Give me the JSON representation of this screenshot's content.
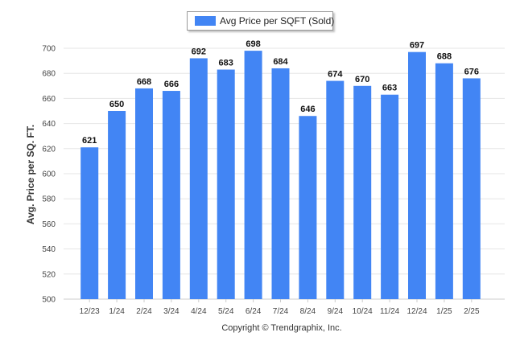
{
  "legend": {
    "label": "Avg Price per SQFT (Sold)"
  },
  "footer": {
    "copyright": "Copyright © Trendgraphix, Inc."
  },
  "colors": {
    "bar": "#4285f4",
    "grid": "#e6e6e6",
    "axis_text": "#444444",
    "value_text": "#111111"
  },
  "chart_data": {
    "type": "bar",
    "title": "",
    "xlabel": "",
    "ylabel": "Avg. Price per SQ. FT.",
    "ylim": [
      500,
      700
    ],
    "yticks": [
      500,
      520,
      540,
      560,
      580,
      600,
      620,
      640,
      660,
      680,
      700
    ],
    "grid": true,
    "legend_position": "top-center",
    "categories": [
      "12/23",
      "1/24",
      "2/24",
      "3/24",
      "4/24",
      "5/24",
      "6/24",
      "7/24",
      "8/24",
      "9/24",
      "10/24",
      "11/24",
      "12/24",
      "1/25",
      "2/25"
    ],
    "series": [
      {
        "name": "Avg Price per SQFT (Sold)",
        "values": [
          621,
          650,
          668,
          666,
          692,
          683,
          698,
          684,
          646,
          674,
          670,
          663,
          697,
          688,
          676
        ]
      }
    ]
  }
}
